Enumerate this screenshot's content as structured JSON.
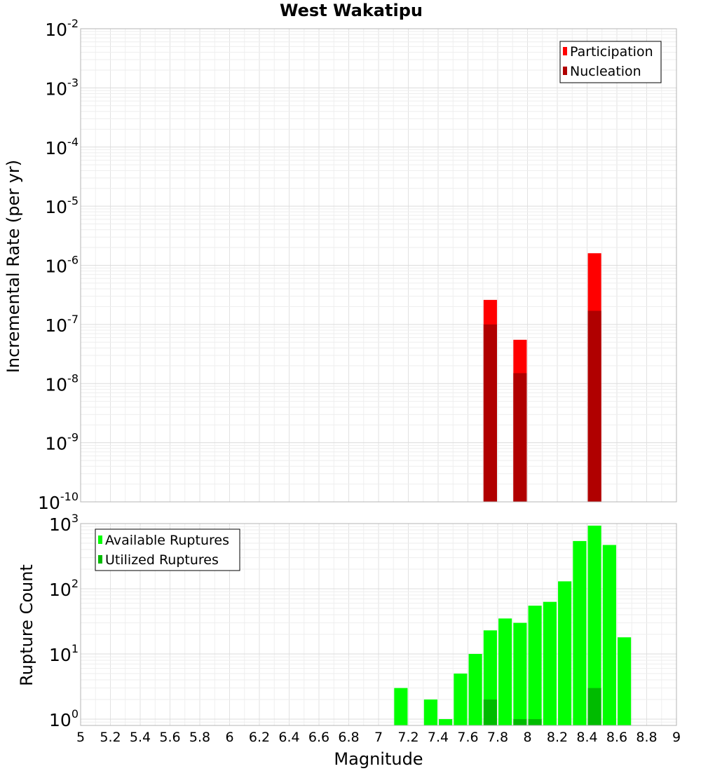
{
  "chart_data": [
    {
      "type": "bar",
      "title": "West Wakatipu",
      "ylabel": "Incremental Rate (per yr)",
      "xlabel": "",
      "yscale": "log",
      "xlim": [
        5,
        9
      ],
      "ylim": [
        1e-10,
        0.01
      ],
      "y_ticks": [
        {
          "value": 1e-10,
          "base": "10",
          "exp": "-10"
        },
        {
          "value": 1e-09,
          "base": "10",
          "exp": "-9"
        },
        {
          "value": 1e-08,
          "base": "10",
          "exp": "-8"
        },
        {
          "value": 1e-07,
          "base": "10",
          "exp": "-7"
        },
        {
          "value": 1e-06,
          "base": "10",
          "exp": "-6"
        },
        {
          "value": 1e-05,
          "base": "10",
          "exp": "-5"
        },
        {
          "value": 0.0001,
          "base": "10",
          "exp": "-4"
        },
        {
          "value": 0.001,
          "base": "10",
          "exp": "-3"
        },
        {
          "value": 0.01,
          "base": "10",
          "exp": "-2"
        }
      ],
      "grid": true,
      "legend_position": "top-right",
      "bar_width": 0.09,
      "series": [
        {
          "name": "Participation",
          "color": "#ff0000",
          "points": [
            {
              "x": 7.75,
              "y": 2.6e-07
            },
            {
              "x": 7.95,
              "y": 5.5e-08
            },
            {
              "x": 8.45,
              "y": 1.6e-06
            }
          ]
        },
        {
          "name": "Nucleation",
          "color": "#b00000",
          "points": [
            {
              "x": 7.75,
              "y": 1e-07
            },
            {
              "x": 7.95,
              "y": 1.5e-08
            },
            {
              "x": 8.45,
              "y": 1.7e-07
            }
          ]
        }
      ]
    },
    {
      "type": "bar",
      "title": "",
      "ylabel": "Rupture Count",
      "xlabel": "Magnitude",
      "yscale": "log",
      "xlim": [
        5,
        9
      ],
      "ylim": [
        0.8,
        1000
      ],
      "y_ticks": [
        {
          "value": 1,
          "base": "10",
          "exp": "0"
        },
        {
          "value": 10,
          "base": "10",
          "exp": "1"
        },
        {
          "value": 100,
          "base": "10",
          "exp": "2"
        },
        {
          "value": 1000,
          "base": "10",
          "exp": "3"
        }
      ],
      "x_ticks": [
        "5",
        "5.2",
        "5.4",
        "5.6",
        "5.8",
        "6",
        "6.2",
        "6.4",
        "6.6",
        "6.8",
        "7",
        "7.2",
        "7.4",
        "7.6",
        "7.8",
        "8",
        "8.2",
        "8.4",
        "8.6",
        "8.8",
        "9"
      ],
      "grid": true,
      "legend_position": "top-left",
      "bar_width": 0.09,
      "series": [
        {
          "name": "Available Ruptures",
          "color": "#00ff00",
          "points": [
            {
              "x": 7.15,
              "y": 3
            },
            {
              "x": 7.35,
              "y": 2
            },
            {
              "x": 7.45,
              "y": 1
            },
            {
              "x": 7.55,
              "y": 5
            },
            {
              "x": 7.65,
              "y": 10
            },
            {
              "x": 7.75,
              "y": 23
            },
            {
              "x": 7.85,
              "y": 35
            },
            {
              "x": 7.95,
              "y": 30
            },
            {
              "x": 8.05,
              "y": 55
            },
            {
              "x": 8.15,
              "y": 63
            },
            {
              "x": 8.25,
              "y": 130
            },
            {
              "x": 8.35,
              "y": 540
            },
            {
              "x": 8.45,
              "y": 930
            },
            {
              "x": 8.55,
              "y": 470
            },
            {
              "x": 8.65,
              "y": 18
            }
          ]
        },
        {
          "name": "Utilized Ruptures",
          "color": "#00bb00",
          "points": [
            {
              "x": 7.75,
              "y": 2
            },
            {
              "x": 7.95,
              "y": 1
            },
            {
              "x": 8.05,
              "y": 1
            },
            {
              "x": 8.45,
              "y": 3
            }
          ]
        }
      ]
    }
  ]
}
